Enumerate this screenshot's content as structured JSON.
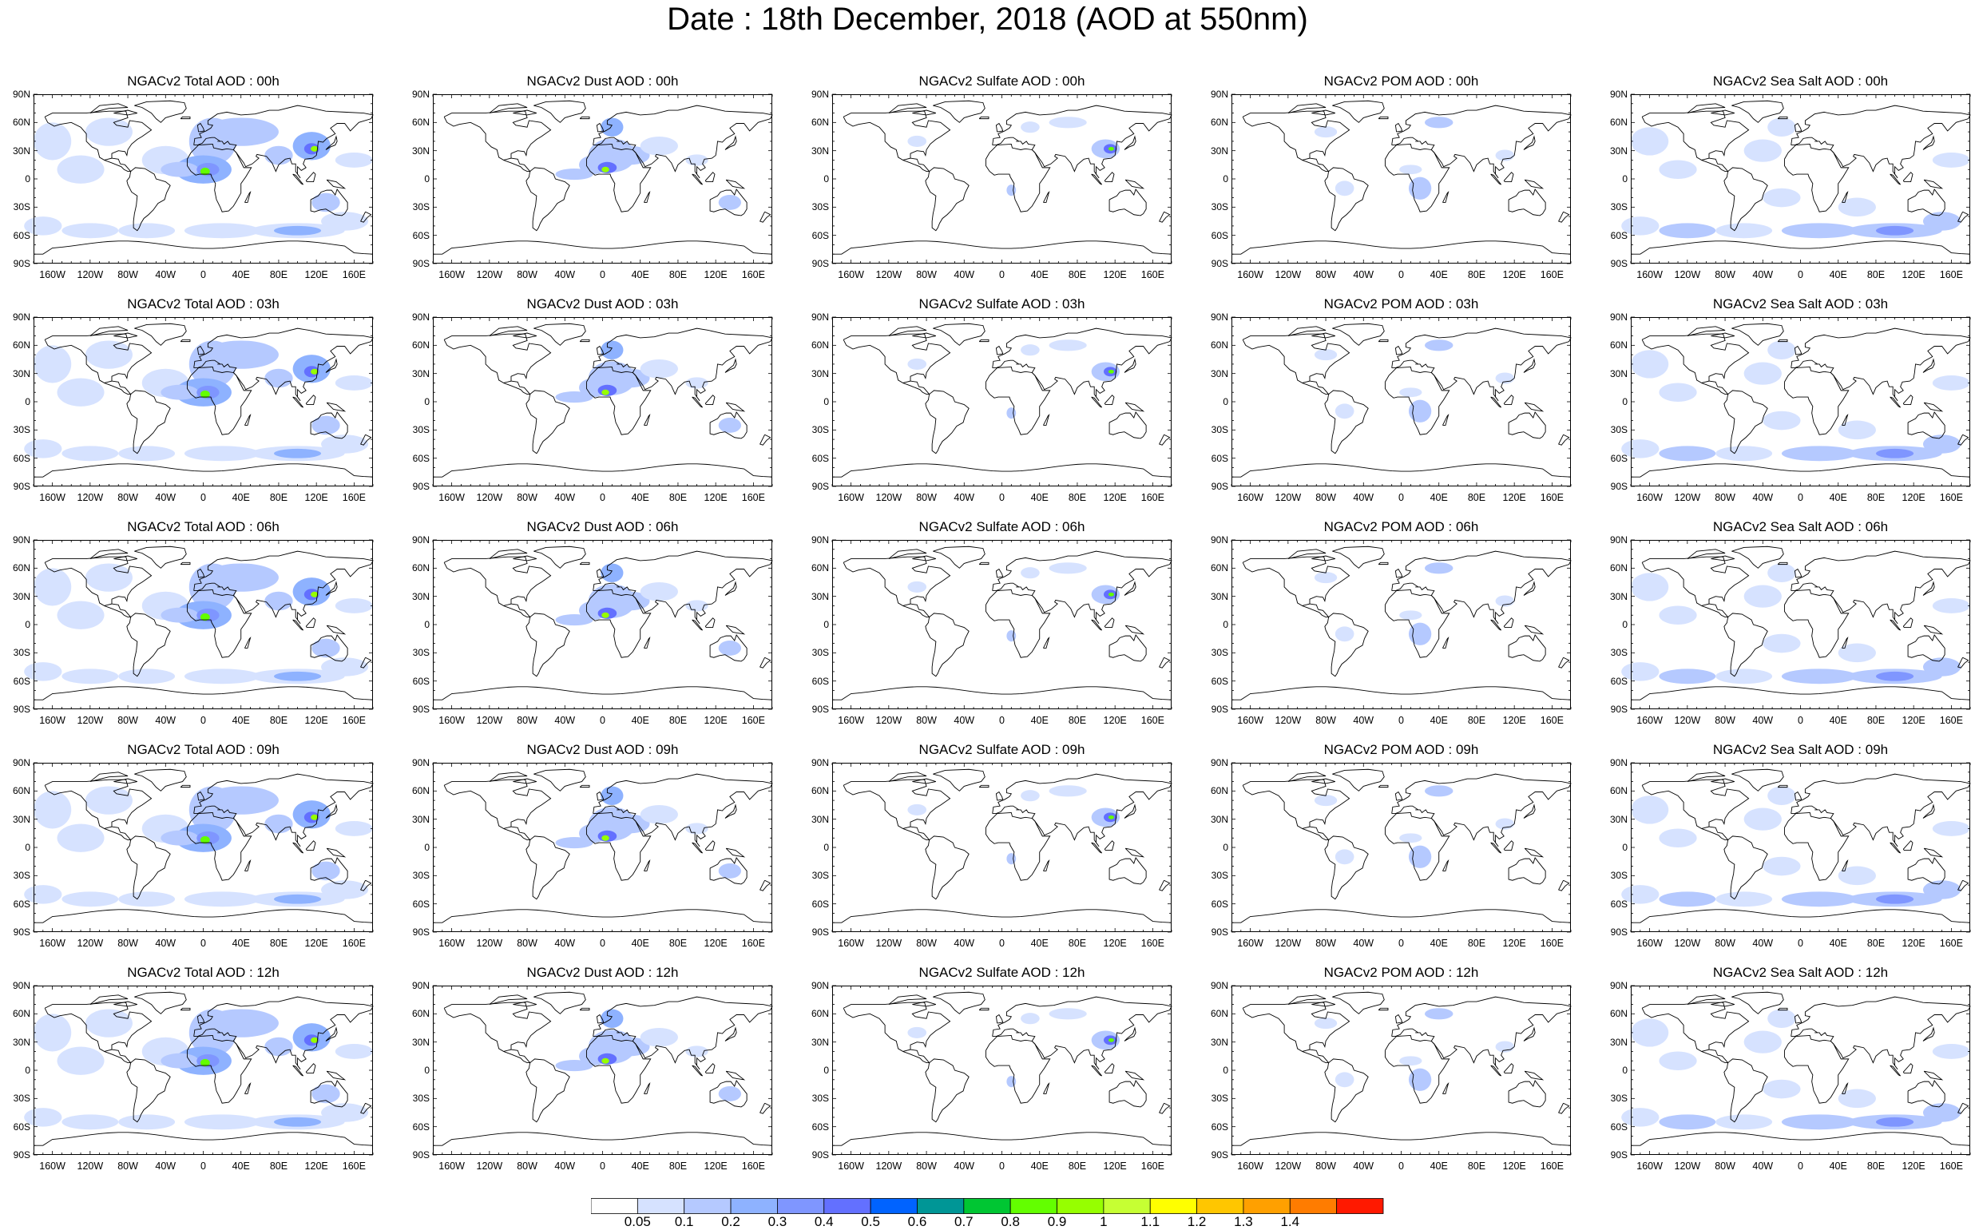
{
  "title": "Date : 18th December, 2018 (AOD at 550nm)",
  "lat_labels": [
    "90N",
    "60N",
    "30N",
    "0",
    "30S",
    "60S",
    "90S"
  ],
  "lon_labels": [
    "160W",
    "120W",
    "80W",
    "40W",
    "0",
    "40E",
    "80E",
    "120E",
    "160E"
  ],
  "rows": [
    {
      "time": "00h",
      "titles": [
        "NGACv2 Total AOD : 00h",
        "NGACv2 Dust AOD : 00h",
        "NGACv2 Sulfate AOD : 00h",
        "NGACv2 POM AOD : 00h",
        "NGACv2 Sea Salt AOD : 00h"
      ]
    },
    {
      "time": "03h",
      "titles": [
        "NGACv2 Total AOD : 03h",
        "NGACv2 Dust AOD : 03h",
        "NGACv2 Sulfate AOD : 03h",
        "NGACv2 POM AOD : 03h",
        "NGACv2 Sea Salt AOD : 03h"
      ]
    },
    {
      "time": "06h",
      "titles": [
        "NGACv2 Total AOD : 06h",
        "NGACv2 Dust AOD : 06h",
        "NGACv2 Sulfate AOD : 06h",
        "NGACv2 POM AOD : 06h",
        "NGACv2 Sea Salt AOD : 06h"
      ]
    },
    {
      "time": "09h",
      "titles": [
        "NGACv2 Total AOD : 09h",
        "NGACv2 Dust AOD : 09h",
        "NGACv2 Sulfate AOD : 09h",
        "NGACv2 POM AOD : 09h",
        "NGACv2 Sea Salt  AOD : 09h"
      ]
    },
    {
      "time": "12h",
      "titles": [
        "NGACv2 Total AOD :  12h",
        "NGACv2 Dust AOD : 12h",
        "NGACv2 Sulfate AOD : 12h",
        "NGACv2 POM  AOD : 12h",
        "NGACv2 Sea Salt  AOD : 12h"
      ]
    }
  ],
  "colorbar": {
    "labels": [
      "0.05",
      "0.1",
      "0.2",
      "0.3",
      "0.4",
      "0.5",
      "0.6",
      "0.7",
      "0.8",
      "0.9",
      "1",
      "1.1",
      "1.2",
      "1.3",
      "1.4"
    ],
    "colors": [
      "#ffffff",
      "#d6e2ff",
      "#b5c9ff",
      "#8eb2ff",
      "#7f96ff",
      "#6370ff",
      "#0063ff",
      "#009696",
      "#00c633",
      "#63ff00",
      "#96ff00",
      "#c6ff33",
      "#ffff00",
      "#ffc600",
      "#ffa000",
      "#ff7c00",
      "#ff1900"
    ]
  }
}
